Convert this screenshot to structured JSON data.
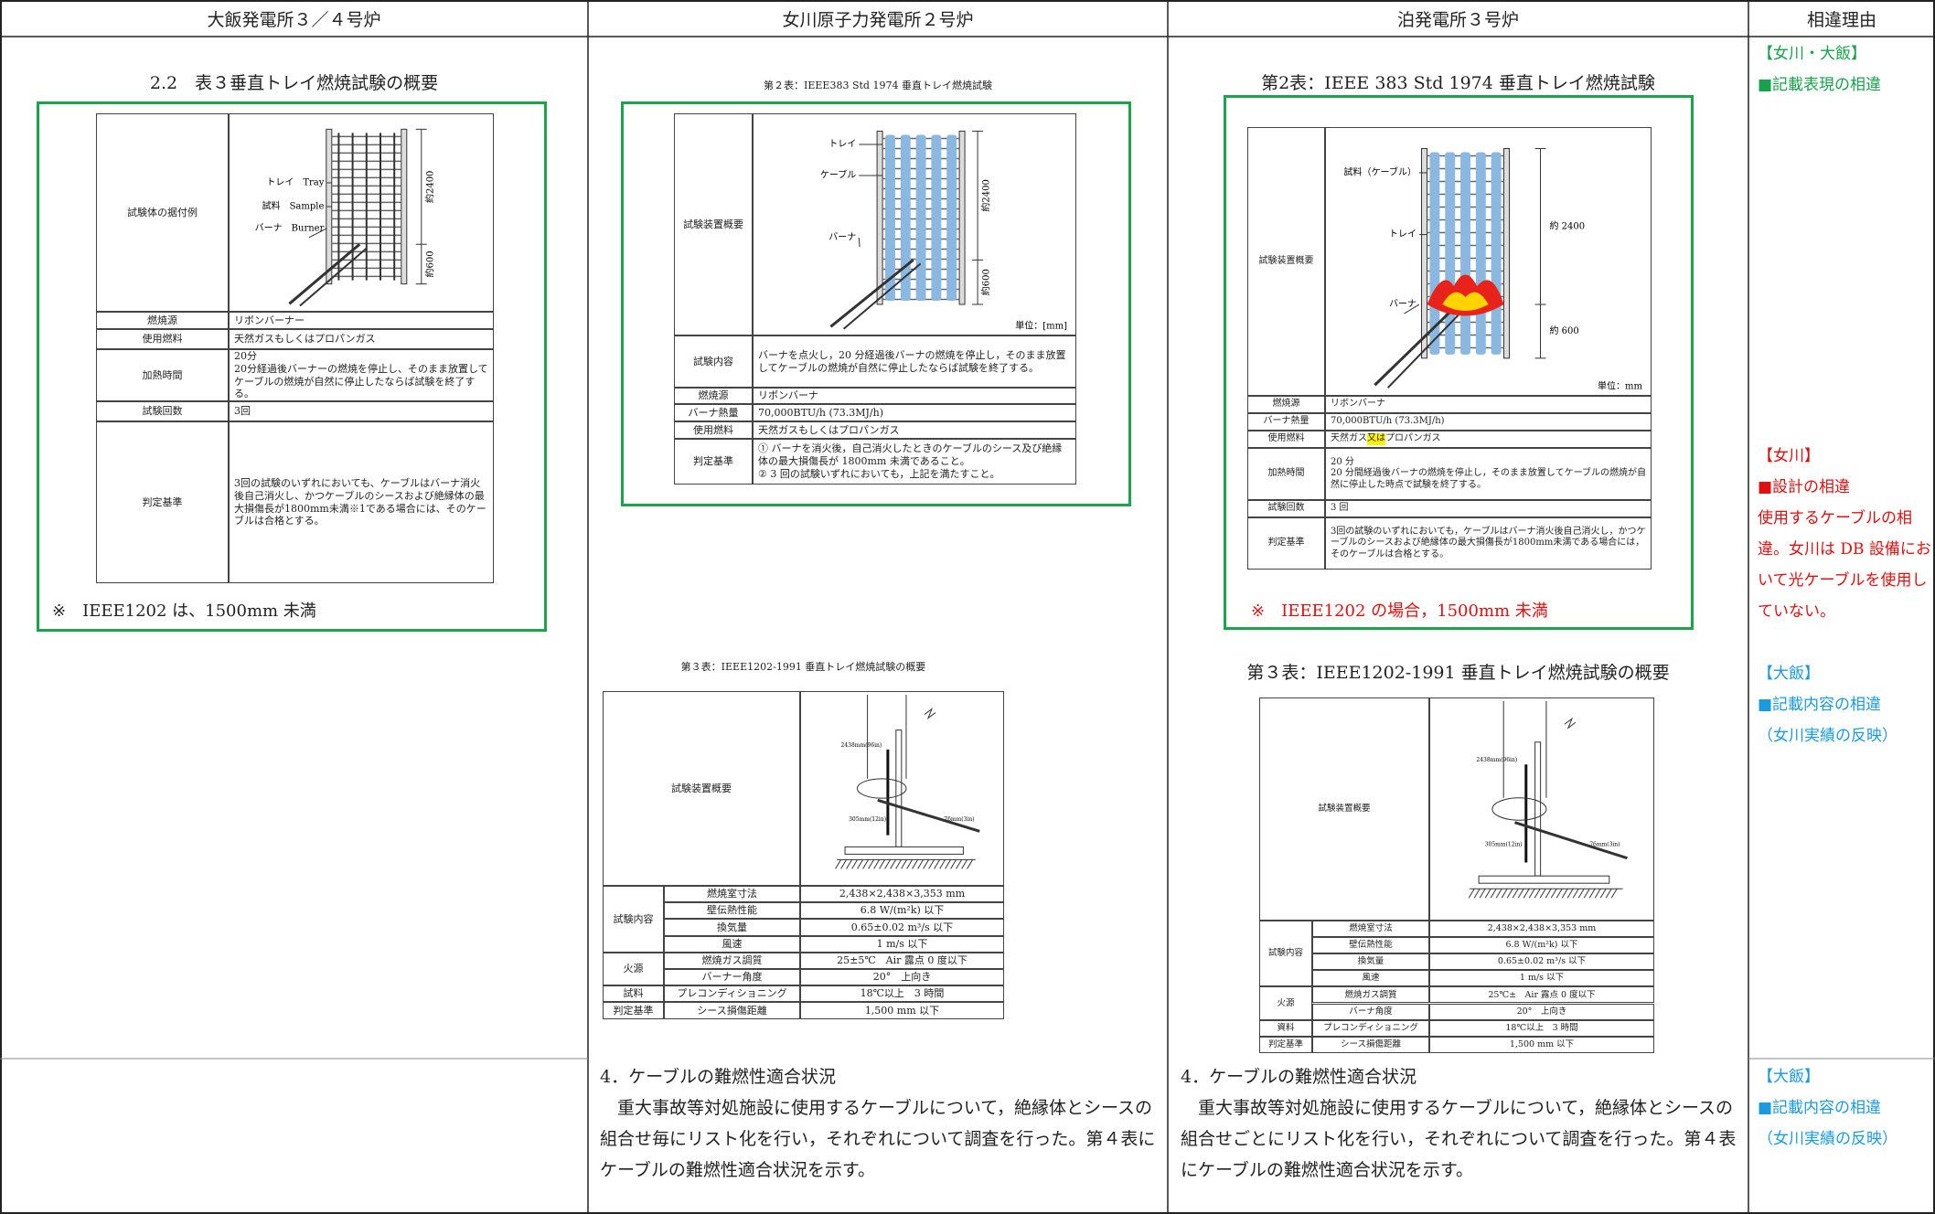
{
  "header": {
    "columns": [
      "大飯発電所３／４号炉",
      "女川原子力発電所２号炉",
      "泊発電所３号炉",
      "相違理由"
    ]
  },
  "ohi": {
    "title": "2.2　表３垂直トレイ燃焼試験の概要",
    "table": {
      "figure": {
        "label": "試験体の据付例",
        "callouts": [
          "トレイ　Tray",
          "試料　Sample",
          "バーナ　Burner"
        ],
        "dims": [
          "約2400",
          "約600"
        ]
      },
      "rows": [
        {
          "label": "燃焼源",
          "text": "リボンバーナー"
        },
        {
          "label": "使用燃料",
          "text": "天然ガスもしくはプロパンガス"
        },
        {
          "label": "加熱時間",
          "text": "20分\n20分経過後バーナーの燃焼を停止し、そのまま放置してケーブルの燃焼が自然に停止したならば試験を終了する。"
        },
        {
          "label": "試験回数",
          "text": "3回"
        },
        {
          "label": "判定基準",
          "text": "3回の試験のいずれにおいても、ケーブルはバーナ消火後自己消火し、かつケーブルのシースおよび絶縁体の最大損傷長が1800mm未満※1である場合には、そのケーブルは合格とする。"
        }
      ]
    },
    "note": "※　IEEE1202 は、1500mm 未満"
  },
  "onagawa": {
    "caption": "第２表：IEEE383 Std 1974 垂直トレイ燃焼試験",
    "table": {
      "figure": {
        "label": "試験装置概要",
        "callouts": [
          "トレイ",
          "ケーブル",
          "バーナ"
        ],
        "dims": [
          "約2400",
          "約600"
        ],
        "unit": "単位：[mm]"
      },
      "rows": [
        {
          "label": "試験内容",
          "text": "バーナを点火し，20 分経過後バーナの燃焼を停止し，そのまま放置してケーブルの燃焼が自然に停止したならば試験を終了する。"
        },
        {
          "label": "燃焼源",
          "text": "リボンバーナ"
        },
        {
          "label": "バーナ熱量",
          "text": "70,000BTU/h (73.3MJ/h)"
        },
        {
          "label": "使用燃料",
          "text": "天然ガスもしくはプロパンガス"
        },
        {
          "label": "判定基準",
          "text": "① バーナを消火後，自己消火したときのケーブルのシース及び絶縁体の最大損傷長が 1800mm 未満であること。\n② 3 回の試験いずれにおいても，上記を満たすこと。"
        }
      ]
    },
    "caption2": "第３表：IEEE1202-1991 垂直トレイ燃焼試験の概要",
    "table3": {
      "figure": {
        "label": "試験装置概要",
        "dims": [
          "2438mm(96in)",
          "305mm(12in)",
          "76mm(3in)"
        ]
      },
      "groups": [
        {
          "label": "試験内容",
          "items": [
            {
              "item": "燃焼室寸法",
              "value": "2,438×2,438×3,353 mm"
            },
            {
              "item": "壁伝熱性能",
              "value": "6.8 W/(m²k) 以下"
            },
            {
              "item": "換気量",
              "value": "0.65±0.02 m³/s 以下"
            },
            {
              "item": "風速",
              "value": "1 m/s 以下"
            }
          ]
        },
        {
          "label": "火源",
          "items": [
            {
              "item": "燃焼ガス調質",
              "value": "25±5℃　Air 露点 0 度以下"
            },
            {
              "item": "バーナー角度",
              "value": "20°　上向き"
            }
          ]
        },
        {
          "label": "試料",
          "items": [
            {
              "item": "プレコンディショニング",
              "value": "18℃以上　3 時間"
            }
          ]
        },
        {
          "label": "判定基準",
          "items": [
            {
              "item": "シース損傷距離",
              "value": "1,500 mm 以下"
            }
          ]
        }
      ]
    },
    "section": {
      "heading": "4．ケーブルの難燃性適合状況",
      "body": "重大事故等対処施設に使用するケーブルについて，絶縁体とシースの組合せ毎にリスト化を行い，それぞれについて調査を行った。第４表にケーブルの難燃性適合状況を示す。"
    }
  },
  "tomari": {
    "title": "第2表：IEEE 383 Std 1974 垂直トレイ燃焼試験",
    "table": {
      "figure": {
        "label": "試験装置概要",
        "callouts": [
          "試料（ケーブル）",
          "トレイ",
          "バーナ"
        ],
        "dims": [
          "約 2400",
          "約 600"
        ],
        "unit": "単位：mm"
      },
      "rows": [
        {
          "label": "燃焼源",
          "text": "リボンバーナ"
        },
        {
          "label": "バーナ熱量",
          "text": "70,000BTU/h (73.3MJ/h)"
        },
        {
          "label": "使用燃料",
          "text": [
            {
              "text": "天然ガス"
            },
            {
              "text": "又は",
              "highlight": "#fff200"
            },
            {
              "text": "プロパンガス"
            }
          ]
        },
        {
          "label": "加熱時間",
          "text": "20 分\n20 分間経過後バーナの燃焼を停止し，そのまま放置してケーブルの燃焼が自然に停止した時点で試験を終了する。"
        },
        {
          "label": "試験回数",
          "text": "3 回"
        },
        {
          "label": "判定基準",
          "text": "3回の試験のいずれにおいても，ケーブルはバーナ消火後自己消火し，かつケーブルのシースおよび絶縁体の最大損傷長が1800mm未満である場合には，そのケーブルは合格とする。"
        }
      ]
    },
    "note": "※　IEEE1202 の場合，1500mm 未満",
    "caption2": "第３表：IEEE1202-1991 垂直トレイ燃焼試験の概要",
    "table3": {
      "figure": {
        "label": "試験装置概要",
        "dims": [
          "2438mm(96in)",
          "305mm(12in)",
          "76mm(3in)"
        ]
      },
      "groups": [
        {
          "label": "試験内容",
          "items": [
            {
              "item": "燃焼室寸法",
              "value": "2,438×2,438×3,353 mm"
            },
            {
              "item": "壁伝熱性能",
              "value": "6.8 W/(m²k) 以下"
            },
            {
              "item": "換気量",
              "value": "0.65±0.02 m³/s 以下"
            },
            {
              "item": "風速",
              "value": "1 m/s 以下"
            }
          ]
        },
        {
          "label": "火源",
          "items": [
            {
              "item": "燃焼ガス調質",
              "value": "25℃±　Air 露点 0 度以下"
            },
            {
              "item": "バーナ角度",
              "value": "20°　上向き"
            }
          ]
        },
        {
          "label": "資料",
          "items": [
            {
              "item": "プレコンディショニング",
              "value": "18℃以上　3 時間"
            }
          ]
        },
        {
          "label": "判定基準",
          "items": [
            {
              "item": "シース損傷距離",
              "value": "1,500 mm 以下"
            }
          ]
        }
      ]
    },
    "section": {
      "heading": "4．ケーブルの難燃性適合状況",
      "body": "重大事故等対処施設に使用するケーブルについて，絶縁体とシースの組合せごとにリスト化を行い，それぞれについて調査を行った。第４表にケーブルの難燃性適合状況を示す。"
    }
  },
  "reasons": [
    {
      "tag": "【女川・大飯】",
      "color": "#17a34a",
      "lines": [
        "■記載表現の相違"
      ]
    },
    {
      "tag": "【女川】",
      "color": "#e01010",
      "lines": [
        "■設計の相違",
        "使用するケーブルの相違。女川は DB 設備において光ケーブルを使用していない。"
      ]
    },
    {
      "tag": "【大飯】",
      "color": "#1a9be0",
      "lines": [
        "■記載内容の相違",
        "（女川実績の反映）"
      ]
    },
    {
      "tag": "【大飯】",
      "color": "#1a9be0",
      "lines": [
        "■記載内容の相違",
        "（女川実績の反映）"
      ]
    }
  ]
}
